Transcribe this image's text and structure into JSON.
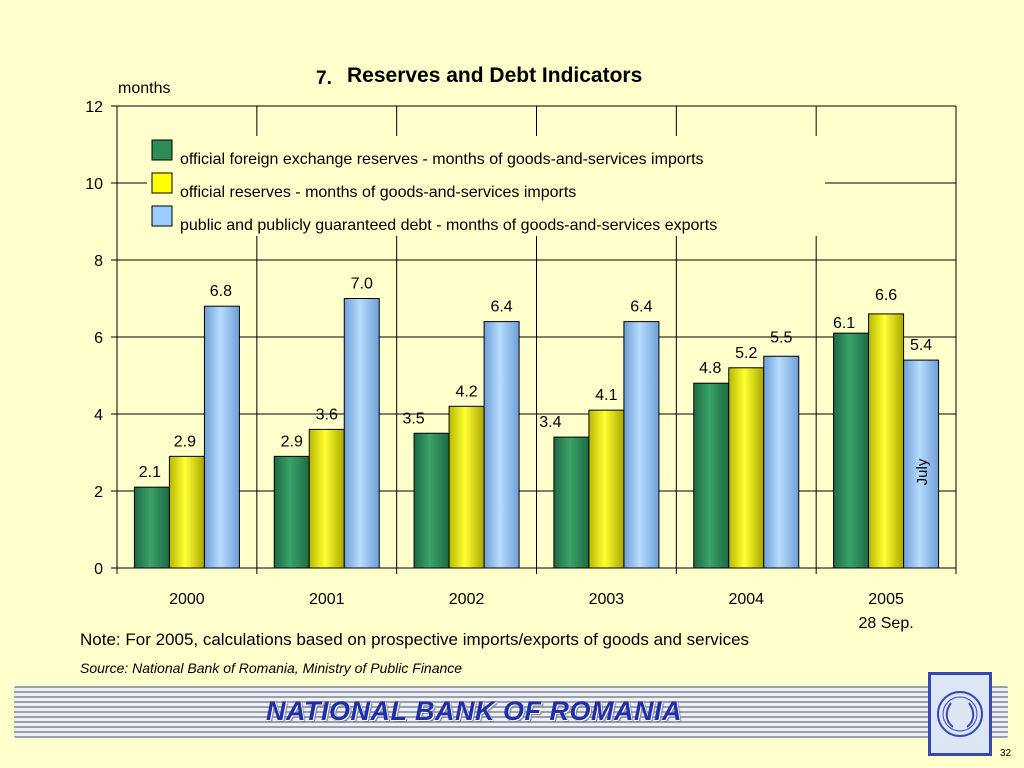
{
  "slide": {
    "title_number": "7.",
    "title": "Reserves and Debt Indicators",
    "note": "Note: For 2005, calculations based on prospective imports/exports of goods and services",
    "source": "Source: National Bank of Romania, Ministry of Public Finance",
    "footer_title": "NATIONAL BANK OF ROMANIA",
    "page_number": "32",
    "logo_letters": "BNR"
  },
  "chart_data": {
    "type": "bar",
    "title": "Reserves and Debt Indicators",
    "ylabel": "months",
    "xlabel": "",
    "ylim": [
      0,
      12
    ],
    "yticks": [
      0,
      2,
      4,
      6,
      8,
      10,
      12
    ],
    "grid": true,
    "legend_position": "top",
    "categories": [
      "2000",
      "2001",
      "2002",
      "2003",
      "2004",
      "2005"
    ],
    "category_sublabels": [
      "",
      "",
      "",
      "",
      "",
      "28 Sep."
    ],
    "series": [
      {
        "name": "official foreign exchange reserves - months of goods-and-services imports",
        "color": "#2E8B57",
        "values": [
          2.1,
          2.9,
          3.5,
          3.4,
          4.8,
          6.1
        ],
        "labels": [
          "2.1",
          "2.9",
          "3.5",
          "3.4",
          "4.8",
          "6.1"
        ]
      },
      {
        "name": "official reserves - months of goods-and-services imports",
        "color": "#FFFF00",
        "values": [
          2.9,
          3.6,
          4.2,
          4.1,
          5.2,
          6.6
        ],
        "labels": [
          "2.9",
          "3.6",
          "4.2",
          "4.1",
          "5.2",
          "6.6"
        ]
      },
      {
        "name": "public and publicly guaranteed debt  - months of goods-and-services exports",
        "color": "#99CCFF",
        "values": [
          6.8,
          7.0,
          6.4,
          6.4,
          5.5,
          5.4
        ],
        "labels": [
          "6.8",
          "7.0",
          "6.4",
          "6.4",
          "5.5",
          "5.4"
        ]
      }
    ],
    "annotations": [
      {
        "text": "July",
        "series_index": 2,
        "category_index": 5
      }
    ]
  }
}
